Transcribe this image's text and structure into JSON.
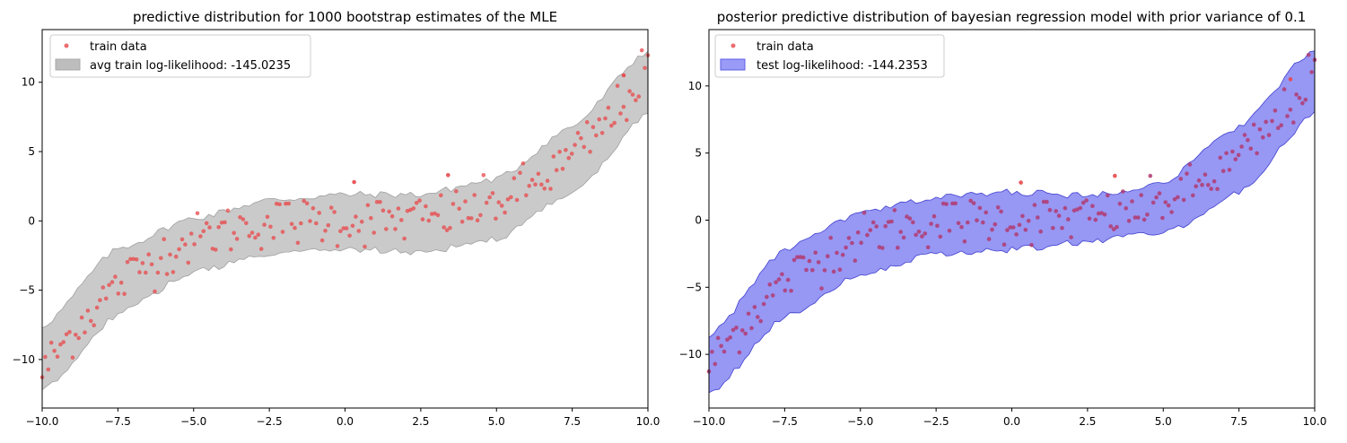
{
  "figure": {
    "left_title": "predictive distribution for 1000 bootstrap estimates of the MLE",
    "right_title": "posterior predictive distribution of bayesian regression model with prior variance of 0.1"
  },
  "chart_data": [
    {
      "type": "scatter",
      "title": "predictive distribution for 1000 bootstrap estimates of the MLE",
      "xlabel": "",
      "ylabel": "",
      "xlim": [
        -10,
        10
      ],
      "ylim": [
        -13.5,
        13.8
      ],
      "xticks": [
        "−10.0",
        "−7.5",
        "−5.0",
        "−2.5",
        "0.0",
        "2.5",
        "5.0",
        "7.5",
        "10.0"
      ],
      "yticks": [
        "−10",
        "−5",
        "0",
        "5",
        "10"
      ],
      "xtick_values": [
        -10,
        -7.5,
        -5,
        -2.5,
        0,
        2.5,
        5,
        7.5,
        10
      ],
      "ytick_values": [
        -10,
        -5,
        0,
        5,
        10
      ],
      "grid": false,
      "legend": "upper-left",
      "series": [
        {
          "name": "train data",
          "kind": "points",
          "color": "#e8474a",
          "note": "200 noisy samples of y = 0.01 x^3 around the cubic trend; outliers listed",
          "outliers": [
            [
              0.3,
              2.8
            ],
            [
              3.4,
              3.3
            ],
            [
              9.2,
              10.5
            ]
          ]
        },
        {
          "name": "avg train log-likelihood: -145.0235",
          "kind": "band",
          "color": "#bdbdbd",
          "x": [
            -10,
            -7.5,
            -5,
            -2.5,
            0,
            2.5,
            5,
            7.5,
            10
          ],
          "lower": [
            -12.3,
            -6.7,
            -3.7,
            -2.4,
            -2.0,
            -2.3,
            -1.3,
            2.0,
            7.7
          ],
          "upper": [
            -7.6,
            -2.0,
            0.2,
            1.5,
            1.9,
            1.9,
            3.0,
            6.8,
            12.3
          ]
        }
      ]
    },
    {
      "type": "scatter",
      "title": "posterior predictive distribution of bayesian regression model with prior variance of 0.1",
      "xlabel": "",
      "ylabel": "",
      "xlim": [
        -10,
        10
      ],
      "ylim": [
        -14.0,
        14.2
      ],
      "xticks": [
        "−10.0",
        "−7.5",
        "−5.0",
        "−2.5",
        "0.0",
        "2.5",
        "5.0",
        "7.5",
        "10.0"
      ],
      "yticks": [
        "−10",
        "−5",
        "0",
        "5",
        "10"
      ],
      "xtick_values": [
        -10,
        -7.5,
        -5,
        -2.5,
        0,
        2.5,
        5,
        7.5,
        10
      ],
      "ytick_values": [
        -10,
        -5,
        0,
        5,
        10
      ],
      "grid": false,
      "legend": "upper-left",
      "series": [
        {
          "name": "train data",
          "kind": "points",
          "color": "#e8474a",
          "outliers": [
            [
              0.3,
              2.8
            ],
            [
              3.4,
              3.3
            ],
            [
              9.2,
              10.5
            ]
          ]
        },
        {
          "name": "test log-likelihood: -144.2353",
          "kind": "band",
          "color": "#6b6bf0",
          "x": [
            -10,
            -7.5,
            -5,
            -2.5,
            0,
            2.5,
            5,
            7.5,
            10
          ],
          "lower": [
            -13.0,
            -7.2,
            -4.0,
            -2.5,
            -2.2,
            -1.6,
            -1.0,
            2.0,
            8.0
          ],
          "upper": [
            -8.6,
            -2.2,
            0.5,
            1.7,
            2.1,
            1.8,
            2.8,
            7.0,
            12.7
          ]
        }
      ]
    }
  ]
}
